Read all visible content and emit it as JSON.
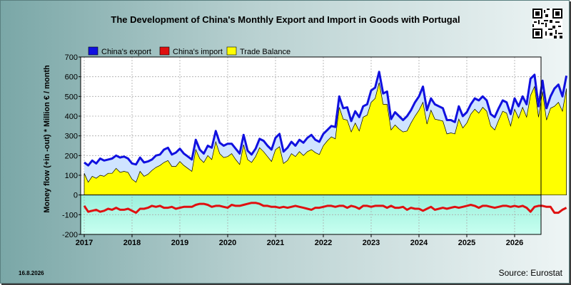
{
  "chart_data": {
    "type": "area",
    "title": "The Development of China's Monthly Export and Import in Goods with Portugal",
    "ylabel": "Money flow (+in -out) * Million € / month",
    "xlabel": "",
    "ylim": [
      -200,
      700
    ],
    "yticks": [
      700,
      600,
      500,
      400,
      300,
      200,
      100,
      0,
      -100,
      -200
    ],
    "xticks": [
      "2017",
      "2018",
      "2019",
      "2020",
      "2021",
      "2022",
      "2023",
      "2024",
      "2025",
      "2026"
    ],
    "grid": true,
    "legend_position": "top-left",
    "x_start": "2017-01",
    "x_end": "2026-07",
    "series": [
      {
        "name": "China's export",
        "color": "#1010e0",
        "values": [
          165,
          150,
          175,
          160,
          185,
          175,
          180,
          185,
          200,
          190,
          195,
          185,
          160,
          155,
          190,
          165,
          170,
          180,
          200,
          205,
          230,
          240,
          205,
          215,
          235,
          210,
          195,
          180,
          280,
          230,
          210,
          250,
          240,
          325,
          265,
          250,
          260,
          260,
          235,
          210,
          305,
          225,
          205,
          235,
          285,
          275,
          250,
          230,
          290,
          310,
          220,
          240,
          270,
          250,
          280,
          265,
          290,
          305,
          280,
          270,
          310,
          330,
          350,
          345,
          500,
          440,
          445,
          375,
          425,
          395,
          450,
          460,
          530,
          545,
          625,
          515,
          525,
          385,
          420,
          400,
          380,
          400,
          430,
          470,
          500,
          550,
          430,
          490,
          460,
          450,
          440,
          380,
          380,
          370,
          450,
          400,
          420,
          460,
          490,
          480,
          500,
          480,
          410,
          395,
          440,
          480,
          470,
          410,
          490,
          450,
          500,
          460,
          590,
          610,
          450,
          580,
          440,
          500,
          540,
          560,
          500,
          605
        ]
      },
      {
        "name": "China's import",
        "color": "#e01010",
        "values": [
          -55,
          -85,
          -80,
          -75,
          -85,
          -80,
          -70,
          -75,
          -65,
          -75,
          -75,
          -70,
          -80,
          -90,
          -70,
          -70,
          -65,
          -55,
          -60,
          -55,
          -65,
          -65,
          -60,
          -70,
          -65,
          -60,
          -60,
          -60,
          -50,
          -45,
          -45,
          -50,
          -60,
          -55,
          -55,
          -60,
          -65,
          -50,
          -55,
          -55,
          -50,
          -45,
          -40,
          -40,
          -45,
          -55,
          -55,
          -60,
          -60,
          -65,
          -60,
          -65,
          -60,
          -55,
          -60,
          -65,
          -70,
          -75,
          -65,
          -65,
          -60,
          -55,
          -55,
          -60,
          -55,
          -55,
          -65,
          -55,
          -60,
          -70,
          -55,
          -55,
          -60,
          -55,
          -55,
          -55,
          -65,
          -55,
          -65,
          -65,
          -60,
          -75,
          -65,
          -70,
          -70,
          -80,
          -70,
          -60,
          -75,
          -70,
          -65,
          -70,
          -65,
          -60,
          -65,
          -60,
          -55,
          -50,
          -55,
          -65,
          -55,
          -55,
          -60,
          -65,
          -60,
          -55,
          -55,
          -60,
          -55,
          -60,
          -55,
          -65,
          -85,
          -60,
          -55,
          -55,
          -60,
          -60,
          -90,
          -90,
          -75,
          -65
        ]
      },
      {
        "name": "Trade Balance",
        "color": "#ffff00",
        "values": [
          110,
          65,
          95,
          85,
          100,
          95,
          110,
          110,
          135,
          115,
          120,
          115,
          80,
          65,
          120,
          95,
          105,
          125,
          140,
          150,
          165,
          175,
          145,
          145,
          170,
          150,
          135,
          120,
          230,
          185,
          165,
          200,
          180,
          270,
          210,
          190,
          195,
          210,
          180,
          155,
          255,
          180,
          165,
          195,
          240,
          220,
          195,
          170,
          230,
          245,
          160,
          175,
          210,
          195,
          220,
          200,
          220,
          230,
          215,
          205,
          250,
          275,
          295,
          285,
          445,
          385,
          380,
          320,
          365,
          325,
          395,
          405,
          470,
          490,
          570,
          460,
          460,
          330,
          355,
          335,
          320,
          325,
          365,
          400,
          430,
          470,
          360,
          430,
          385,
          380,
          375,
          310,
          315,
          310,
          385,
          340,
          365,
          410,
          435,
          415,
          445,
          425,
          350,
          330,
          380,
          425,
          415,
          350,
          435,
          390,
          445,
          395,
          505,
          550,
          395,
          525,
          380,
          440,
          450,
          470,
          425,
          540
        ]
      }
    ]
  },
  "date_label": "16.8.2026",
  "source_label": "Source: Eurostat"
}
